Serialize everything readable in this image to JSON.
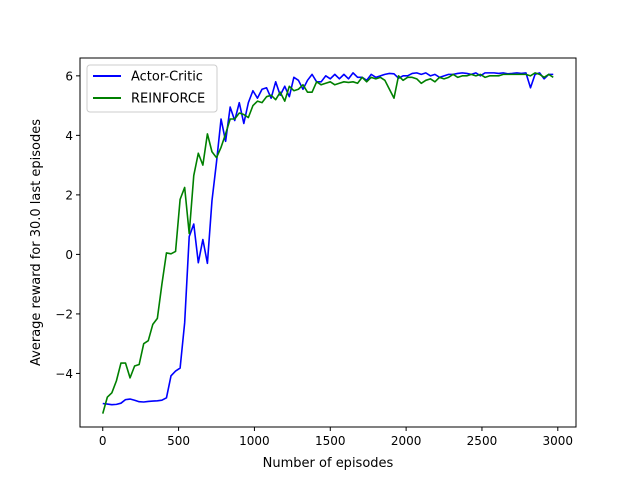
{
  "chart_data": {
    "type": "line",
    "xlabel": "Number of episodes",
    "ylabel": "Average reward for 30.0 last episodes",
    "xlim": [
      -150,
      3120
    ],
    "ylim": [
      -5.8,
      6.6
    ],
    "xticks": [
      0,
      500,
      1000,
      1500,
      2000,
      2500,
      3000
    ],
    "yticks": [
      -4,
      -2,
      0,
      2,
      4,
      6
    ],
    "xtick_labels": [
      "0",
      "500",
      "1000",
      "1500",
      "2000",
      "2500",
      "3000"
    ],
    "ytick_labels": [
      "−4",
      "−2",
      "0",
      "2",
      "4",
      "6"
    ],
    "grid": false,
    "legend_position": "upper-left",
    "series": [
      {
        "name": "Actor-Critic",
        "color": "#0000ff",
        "points": [
          [
            0,
            -5.01
          ],
          [
            30,
            -5.03
          ],
          [
            60,
            -5.05
          ],
          [
            90,
            -5.04
          ],
          [
            120,
            -5.0
          ],
          [
            150,
            -4.88
          ],
          [
            180,
            -4.86
          ],
          [
            210,
            -4.9
          ],
          [
            240,
            -4.95
          ],
          [
            270,
            -4.96
          ],
          [
            300,
            -4.94
          ],
          [
            330,
            -4.93
          ],
          [
            360,
            -4.92
          ],
          [
            390,
            -4.9
          ],
          [
            420,
            -4.82
          ],
          [
            450,
            -4.08
          ],
          [
            480,
            -3.92
          ],
          [
            510,
            -3.82
          ],
          [
            540,
            -2.3
          ],
          [
            570,
            0.6
          ],
          [
            600,
            1.02
          ],
          [
            630,
            -0.28
          ],
          [
            660,
            0.5
          ],
          [
            690,
            -0.3
          ],
          [
            720,
            1.8
          ],
          [
            750,
            3.1
          ],
          [
            780,
            4.55
          ],
          [
            810,
            3.8
          ],
          [
            840,
            4.95
          ],
          [
            870,
            4.5
          ],
          [
            900,
            5.1
          ],
          [
            930,
            4.4
          ],
          [
            960,
            5.1
          ],
          [
            990,
            5.5
          ],
          [
            1020,
            5.25
          ],
          [
            1050,
            5.55
          ],
          [
            1080,
            5.6
          ],
          [
            1110,
            5.25
          ],
          [
            1140,
            5.8
          ],
          [
            1170,
            5.35
          ],
          [
            1200,
            5.65
          ],
          [
            1230,
            5.3
          ],
          [
            1260,
            5.95
          ],
          [
            1290,
            5.85
          ],
          [
            1320,
            5.55
          ],
          [
            1350,
            5.85
          ],
          [
            1380,
            6.05
          ],
          [
            1410,
            5.8
          ],
          [
            1440,
            5.8
          ],
          [
            1470,
            6.0
          ],
          [
            1500,
            5.9
          ],
          [
            1530,
            6.05
          ],
          [
            1560,
            5.9
          ],
          [
            1590,
            6.05
          ],
          [
            1620,
            5.9
          ],
          [
            1650,
            6.1
          ],
          [
            1680,
            5.95
          ],
          [
            1710,
            5.95
          ],
          [
            1740,
            5.85
          ],
          [
            1770,
            6.05
          ],
          [
            1800,
            5.95
          ],
          [
            1830,
            6.0
          ],
          [
            1860,
            6.05
          ],
          [
            1890,
            6.08
          ],
          [
            1920,
            6.07
          ],
          [
            1950,
            5.92
          ],
          [
            1980,
            6.0
          ],
          [
            2010,
            6.0
          ],
          [
            2040,
            6.08
          ],
          [
            2070,
            6.1
          ],
          [
            2100,
            6.05
          ],
          [
            2130,
            6.1
          ],
          [
            2160,
            6.0
          ],
          [
            2190,
            6.05
          ],
          [
            2220,
            5.95
          ],
          [
            2250,
            6.0
          ],
          [
            2280,
            6.05
          ],
          [
            2310,
            6.05
          ],
          [
            2340,
            6.08
          ],
          [
            2370,
            6.1
          ],
          [
            2400,
            6.08
          ],
          [
            2430,
            6.05
          ],
          [
            2460,
            6.1
          ],
          [
            2490,
            6.0
          ],
          [
            2520,
            6.1
          ],
          [
            2550,
            6.1
          ],
          [
            2580,
            6.1
          ],
          [
            2610,
            6.08
          ],
          [
            2640,
            6.1
          ],
          [
            2670,
            6.07
          ],
          [
            2700,
            6.08
          ],
          [
            2730,
            6.1
          ],
          [
            2760,
            6.08
          ],
          [
            2790,
            6.1
          ],
          [
            2820,
            5.6
          ],
          [
            2850,
            6.05
          ],
          [
            2880,
            6.1
          ],
          [
            2910,
            5.9
          ],
          [
            2940,
            6.05
          ],
          [
            2970,
            6.05
          ]
        ]
      },
      {
        "name": "REINFORCE",
        "color": "#008000",
        "points": [
          [
            0,
            -5.35
          ],
          [
            30,
            -4.8
          ],
          [
            60,
            -4.65
          ],
          [
            90,
            -4.25
          ],
          [
            120,
            -3.65
          ],
          [
            150,
            -3.65
          ],
          [
            180,
            -4.15
          ],
          [
            210,
            -3.75
          ],
          [
            240,
            -3.7
          ],
          [
            270,
            -3.0
          ],
          [
            300,
            -2.9
          ],
          [
            330,
            -2.35
          ],
          [
            360,
            -2.15
          ],
          [
            390,
            -1.0
          ],
          [
            420,
            0.05
          ],
          [
            450,
            0.02
          ],
          [
            480,
            0.1
          ],
          [
            510,
            1.85
          ],
          [
            540,
            2.25
          ],
          [
            570,
            0.7
          ],
          [
            600,
            2.65
          ],
          [
            630,
            3.4
          ],
          [
            660,
            3.0
          ],
          [
            690,
            4.05
          ],
          [
            720,
            3.45
          ],
          [
            750,
            3.25
          ],
          [
            780,
            3.6
          ],
          [
            810,
            4.05
          ],
          [
            840,
            4.55
          ],
          [
            870,
            4.55
          ],
          [
            900,
            4.75
          ],
          [
            930,
            4.7
          ],
          [
            960,
            4.6
          ],
          [
            990,
            5.0
          ],
          [
            1020,
            5.15
          ],
          [
            1050,
            5.1
          ],
          [
            1080,
            5.3
          ],
          [
            1110,
            5.35
          ],
          [
            1140,
            5.2
          ],
          [
            1170,
            5.45
          ],
          [
            1200,
            5.15
          ],
          [
            1230,
            5.65
          ],
          [
            1260,
            5.5
          ],
          [
            1290,
            5.55
          ],
          [
            1320,
            5.7
          ],
          [
            1350,
            5.45
          ],
          [
            1380,
            5.45
          ],
          [
            1410,
            5.8
          ],
          [
            1440,
            5.7
          ],
          [
            1470,
            5.75
          ],
          [
            1500,
            5.8
          ],
          [
            1530,
            5.7
          ],
          [
            1560,
            5.75
          ],
          [
            1590,
            5.8
          ],
          [
            1620,
            5.78
          ],
          [
            1650,
            5.8
          ],
          [
            1680,
            5.75
          ],
          [
            1710,
            5.95
          ],
          [
            1740,
            5.8
          ],
          [
            1770,
            5.95
          ],
          [
            1800,
            5.9
          ],
          [
            1830,
            5.95
          ],
          [
            1860,
            5.85
          ],
          [
            1890,
            5.55
          ],
          [
            1920,
            5.25
          ],
          [
            1950,
            6.0
          ],
          [
            1980,
            5.85
          ],
          [
            2010,
            5.95
          ],
          [
            2040,
            5.95
          ],
          [
            2070,
            5.9
          ],
          [
            2100,
            5.75
          ],
          [
            2130,
            5.85
          ],
          [
            2160,
            5.9
          ],
          [
            2190,
            5.8
          ],
          [
            2220,
            5.95
          ],
          [
            2250,
            5.9
          ],
          [
            2280,
            5.95
          ],
          [
            2310,
            6.05
          ],
          [
            2340,
            5.95
          ],
          [
            2370,
            6.0
          ],
          [
            2400,
            6.0
          ],
          [
            2430,
            6.05
          ],
          [
            2460,
            6.0
          ],
          [
            2490,
            6.05
          ],
          [
            2520,
            5.95
          ],
          [
            2550,
            6.0
          ],
          [
            2580,
            6.0
          ],
          [
            2610,
            6.0
          ],
          [
            2640,
            6.05
          ],
          [
            2670,
            6.05
          ],
          [
            2700,
            6.05
          ],
          [
            2730,
            6.05
          ],
          [
            2760,
            6.05
          ],
          [
            2790,
            6.05
          ],
          [
            2820,
            6.0
          ],
          [
            2850,
            6.1
          ],
          [
            2880,
            6.05
          ],
          [
            2910,
            5.95
          ],
          [
            2940,
            6.05
          ],
          [
            2970,
            5.95
          ]
        ]
      }
    ]
  }
}
